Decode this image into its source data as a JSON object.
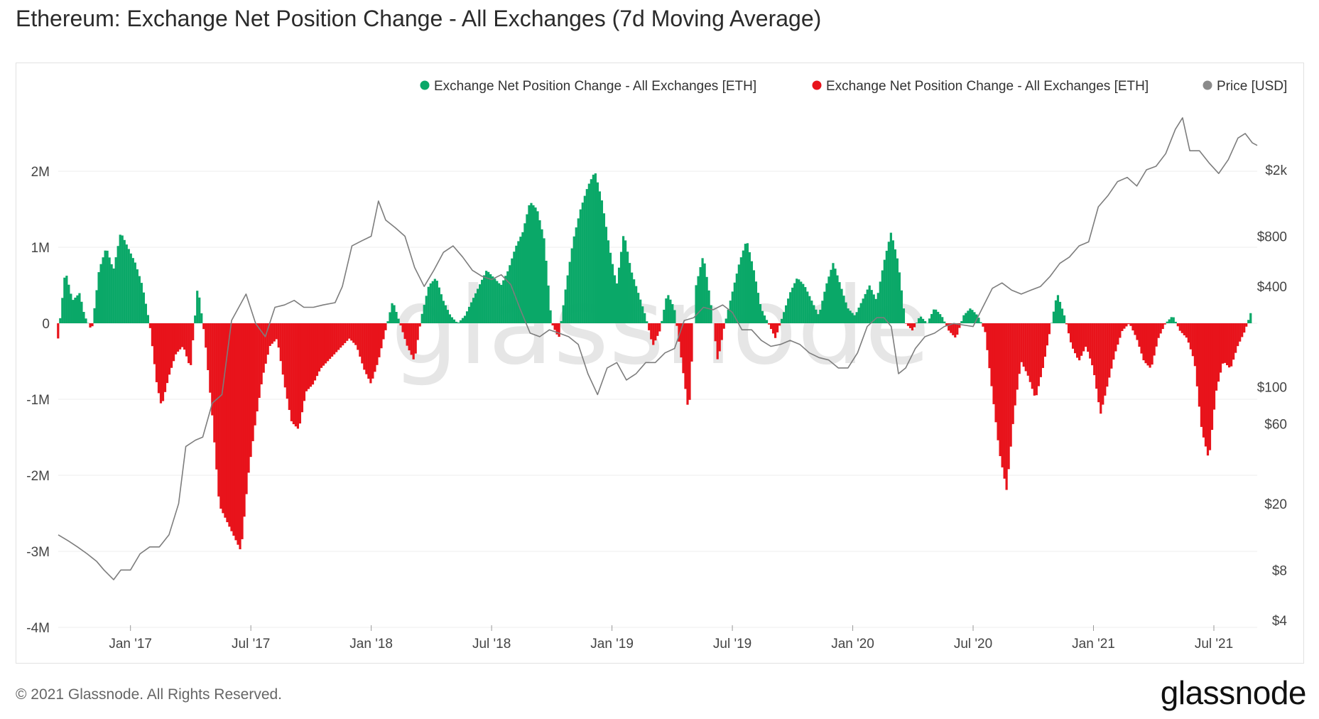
{
  "title": "Ethereum: Exchange Net Position Change - All Exchanges (7d Moving Average)",
  "footer": "© 2021 Glassnode. All Rights Reserved.",
  "logo": "glassnode",
  "watermark": "glassnode",
  "colors": {
    "positive": "#0aa868",
    "negative": "#e8131b",
    "price": "#8a8a8a",
    "grid": "#ececec"
  },
  "chart_data": {
    "type": "bar",
    "title": "Ethereum: Exchange Net Position Change - All Exchanges (7d Moving Average)",
    "legend": [
      {
        "label": "Exchange Net Position Change - All Exchanges [ETH]",
        "color": "#0aa868"
      },
      {
        "label": "Exchange Net Position Change - All Exchanges [ETH]",
        "color": "#e8131b"
      },
      {
        "label": "Price [USD]",
        "color": "#8a8a8a"
      }
    ],
    "legend_position": "top-right",
    "y_left": {
      "min": -4000000,
      "max": 2000000,
      "ticks": [
        2000000,
        1000000,
        0,
        -1000000,
        -2000000,
        -3000000,
        -4000000
      ],
      "tick_labels": [
        "2M",
        "1M",
        "0",
        "-1M",
        "-2M",
        "-3M",
        "-4M"
      ]
    },
    "y_right": {
      "scale": "log",
      "min": 4,
      "max": 4000,
      "ticks": [
        2000,
        800,
        400,
        100,
        60,
        20,
        8,
        4
      ],
      "tick_labels": [
        "$2k",
        "$800",
        "$400",
        "$100",
        "$60",
        "$20",
        "$8",
        "$4"
      ]
    },
    "x_range": [
      2016.7,
      2021.68
    ],
    "x_ticks": [
      2017.0,
      2017.5,
      2018.0,
      2018.5,
      2019.0,
      2019.5,
      2020.0,
      2020.5,
      2021.0,
      2021.5
    ],
    "x_tick_labels": [
      "Jan '17",
      "Jul '17",
      "Jan '18",
      "Jul '18",
      "Jan '19",
      "Jul '19",
      "Jan '20",
      "Jul '20",
      "Jan '21",
      "Jul '21"
    ],
    "net_position_change": [
      [
        2016.7,
        -200000
      ],
      [
        2016.73,
        700000
      ],
      [
        2016.76,
        300000
      ],
      [
        2016.79,
        400000
      ],
      [
        2016.81,
        100000
      ],
      [
        2016.84,
        -100000
      ],
      [
        2016.87,
        700000
      ],
      [
        2016.9,
        1000000
      ],
      [
        2016.93,
        700000
      ],
      [
        2016.96,
        1200000
      ],
      [
        2016.99,
        1000000
      ],
      [
        2017.02,
        800000
      ],
      [
        2017.05,
        500000
      ],
      [
        2017.08,
        0
      ],
      [
        2017.11,
        -800000
      ],
      [
        2017.13,
        -1100000
      ],
      [
        2017.16,
        -700000
      ],
      [
        2017.19,
        -400000
      ],
      [
        2017.22,
        -300000
      ],
      [
        2017.25,
        -600000
      ],
      [
        2017.28,
        500000
      ],
      [
        2017.31,
        -200000
      ],
      [
        2017.34,
        -1200000
      ],
      [
        2017.37,
        -2400000
      ],
      [
        2017.4,
        -2600000
      ],
      [
        2017.43,
        -2800000
      ],
      [
        2017.46,
        -3000000
      ],
      [
        2017.49,
        -2000000
      ],
      [
        2017.52,
        -1300000
      ],
      [
        2017.55,
        -700000
      ],
      [
        2017.58,
        -300000
      ],
      [
        2017.61,
        -200000
      ],
      [
        2017.64,
        -800000
      ],
      [
        2017.67,
        -1300000
      ],
      [
        2017.7,
        -1400000
      ],
      [
        2017.73,
        -900000
      ],
      [
        2017.76,
        -800000
      ],
      [
        2017.79,
        -600000
      ],
      [
        2017.82,
        -500000
      ],
      [
        2017.85,
        -400000
      ],
      [
        2017.88,
        -300000
      ],
      [
        2017.91,
        -200000
      ],
      [
        2017.94,
        -300000
      ],
      [
        2017.97,
        -600000
      ],
      [
        2018.0,
        -800000
      ],
      [
        2018.03,
        -500000
      ],
      [
        2018.06,
        -100000
      ],
      [
        2018.09,
        300000
      ],
      [
        2018.12,
        0
      ],
      [
        2018.15,
        -300000
      ],
      [
        2018.18,
        -500000
      ],
      [
        2018.21,
        100000
      ],
      [
        2018.24,
        500000
      ],
      [
        2018.27,
        600000
      ],
      [
        2018.3,
        300000
      ],
      [
        2018.33,
        100000
      ],
      [
        2018.36,
        0
      ],
      [
        2018.39,
        100000
      ],
      [
        2018.42,
        300000
      ],
      [
        2018.45,
        500000
      ],
      [
        2018.48,
        700000
      ],
      [
        2018.51,
        600000
      ],
      [
        2018.54,
        500000
      ],
      [
        2018.57,
        700000
      ],
      [
        2018.6,
        1000000
      ],
      [
        2018.63,
        1200000
      ],
      [
        2018.66,
        1600000
      ],
      [
        2018.69,
        1500000
      ],
      [
        2018.72,
        1100000
      ],
      [
        2018.75,
        0
      ],
      [
        2018.78,
        -200000
      ],
      [
        2018.81,
        500000
      ],
      [
        2018.84,
        1100000
      ],
      [
        2018.87,
        1500000
      ],
      [
        2018.9,
        1800000
      ],
      [
        2018.93,
        2000000
      ],
      [
        2018.96,
        1600000
      ],
      [
        2018.99,
        1000000
      ],
      [
        2019.02,
        500000
      ],
      [
        2019.05,
        1200000
      ],
      [
        2019.08,
        700000
      ],
      [
        2019.11,
        400000
      ],
      [
        2019.14,
        100000
      ],
      [
        2019.17,
        -300000
      ],
      [
        2019.2,
        -100000
      ],
      [
        2019.23,
        400000
      ],
      [
        2019.26,
        200000
      ],
      [
        2019.29,
        -500000
      ],
      [
        2019.32,
        -1200000
      ],
      [
        2019.35,
        500000
      ],
      [
        2019.38,
        900000
      ],
      [
        2019.41,
        300000
      ],
      [
        2019.44,
        -500000
      ],
      [
        2019.47,
        0
      ],
      [
        2019.5,
        400000
      ],
      [
        2019.53,
        800000
      ],
      [
        2019.56,
        1100000
      ],
      [
        2019.59,
        700000
      ],
      [
        2019.62,
        200000
      ],
      [
        2019.65,
        0
      ],
      [
        2019.68,
        -200000
      ],
      [
        2019.71,
        100000
      ],
      [
        2019.74,
        400000
      ],
      [
        2019.77,
        600000
      ],
      [
        2019.8,
        500000
      ],
      [
        2019.83,
        300000
      ],
      [
        2019.86,
        100000
      ],
      [
        2019.89,
        500000
      ],
      [
        2019.92,
        800000
      ],
      [
        2019.95,
        500000
      ],
      [
        2019.98,
        200000
      ],
      [
        2020.01,
        100000
      ],
      [
        2020.04,
        300000
      ],
      [
        2020.07,
        500000
      ],
      [
        2020.1,
        300000
      ],
      [
        2020.13,
        800000
      ],
      [
        2020.16,
        1200000
      ],
      [
        2020.19,
        800000
      ],
      [
        2020.22,
        0
      ],
      [
        2020.25,
        -100000
      ],
      [
        2020.28,
        100000
      ],
      [
        2020.31,
        0
      ],
      [
        2020.34,
        200000
      ],
      [
        2020.37,
        100000
      ],
      [
        2020.4,
        -100000
      ],
      [
        2020.43,
        -200000
      ],
      [
        2020.46,
        100000
      ],
      [
        2020.49,
        200000
      ],
      [
        2020.52,
        100000
      ],
      [
        2020.55,
        -100000
      ],
      [
        2020.58,
        -900000
      ],
      [
        2020.61,
        -1700000
      ],
      [
        2020.64,
        -2200000
      ],
      [
        2020.67,
        -1200000
      ],
      [
        2020.7,
        -500000
      ],
      [
        2020.73,
        -700000
      ],
      [
        2020.76,
        -1000000
      ],
      [
        2020.79,
        -600000
      ],
      [
        2020.82,
        -100000
      ],
      [
        2020.85,
        400000
      ],
      [
        2020.88,
        100000
      ],
      [
        2020.91,
        -300000
      ],
      [
        2020.94,
        -500000
      ],
      [
        2020.97,
        -300000
      ],
      [
        2021.0,
        -600000
      ],
      [
        2021.03,
        -1200000
      ],
      [
        2021.06,
        -800000
      ],
      [
        2021.09,
        -400000
      ],
      [
        2021.12,
        -100000
      ],
      [
        2021.15,
        0
      ],
      [
        2021.18,
        -200000
      ],
      [
        2021.21,
        -500000
      ],
      [
        2021.24,
        -600000
      ],
      [
        2021.27,
        -200000
      ],
      [
        2021.3,
        0
      ],
      [
        2021.33,
        100000
      ],
      [
        2021.36,
        -100000
      ],
      [
        2021.39,
        -200000
      ],
      [
        2021.42,
        -500000
      ],
      [
        2021.45,
        -1400000
      ],
      [
        2021.48,
        -1800000
      ],
      [
        2021.51,
        -900000
      ],
      [
        2021.54,
        -500000
      ],
      [
        2021.57,
        -600000
      ],
      [
        2021.6,
        -300000
      ],
      [
        2021.63,
        -100000
      ],
      [
        2021.66,
        200000
      ]
    ],
    "price_usd": [
      [
        2016.7,
        13
      ],
      [
        2016.74,
        12
      ],
      [
        2016.78,
        11
      ],
      [
        2016.82,
        10
      ],
      [
        2016.86,
        9
      ],
      [
        2016.89,
        8
      ],
      [
        2016.93,
        7
      ],
      [
        2016.96,
        8
      ],
      [
        2017.0,
        8
      ],
      [
        2017.04,
        10
      ],
      [
        2017.08,
        11
      ],
      [
        2017.12,
        11
      ],
      [
        2017.16,
        13
      ],
      [
        2017.2,
        20
      ],
      [
        2017.23,
        44
      ],
      [
        2017.27,
        48
      ],
      [
        2017.3,
        50
      ],
      [
        2017.34,
        80
      ],
      [
        2017.38,
        90
      ],
      [
        2017.42,
        250
      ],
      [
        2017.45,
        300
      ],
      [
        2017.48,
        360
      ],
      [
        2017.52,
        240
      ],
      [
        2017.56,
        200
      ],
      [
        2017.6,
        300
      ],
      [
        2017.64,
        310
      ],
      [
        2017.68,
        330
      ],
      [
        2017.72,
        300
      ],
      [
        2017.76,
        300
      ],
      [
        2017.8,
        310
      ],
      [
        2017.85,
        320
      ],
      [
        2017.88,
        400
      ],
      [
        2017.92,
        700
      ],
      [
        2017.96,
        750
      ],
      [
        2018.0,
        800
      ],
      [
        2018.03,
        1300
      ],
      [
        2018.06,
        1000
      ],
      [
        2018.1,
        900
      ],
      [
        2018.14,
        800
      ],
      [
        2018.18,
        520
      ],
      [
        2018.22,
        400
      ],
      [
        2018.26,
        500
      ],
      [
        2018.3,
        640
      ],
      [
        2018.34,
        700
      ],
      [
        2018.38,
        600
      ],
      [
        2018.42,
        500
      ],
      [
        2018.46,
        460
      ],
      [
        2018.5,
        440
      ],
      [
        2018.54,
        470
      ],
      [
        2018.58,
        410
      ],
      [
        2018.62,
        290
      ],
      [
        2018.66,
        210
      ],
      [
        2018.7,
        200
      ],
      [
        2018.74,
        220
      ],
      [
        2018.78,
        210
      ],
      [
        2018.82,
        200
      ],
      [
        2018.86,
        180
      ],
      [
        2018.9,
        120
      ],
      [
        2018.94,
        90
      ],
      [
        2018.98,
        130
      ],
      [
        2019.02,
        140
      ],
      [
        2019.06,
        110
      ],
      [
        2019.1,
        120
      ],
      [
        2019.14,
        140
      ],
      [
        2019.18,
        140
      ],
      [
        2019.22,
        160
      ],
      [
        2019.26,
        170
      ],
      [
        2019.3,
        250
      ],
      [
        2019.34,
        260
      ],
      [
        2019.38,
        300
      ],
      [
        2019.42,
        290
      ],
      [
        2019.46,
        310
      ],
      [
        2019.5,
        280
      ],
      [
        2019.54,
        220
      ],
      [
        2019.58,
        220
      ],
      [
        2019.62,
        190
      ],
      [
        2019.66,
        175
      ],
      [
        2019.7,
        180
      ],
      [
        2019.74,
        190
      ],
      [
        2019.78,
        180
      ],
      [
        2019.82,
        160
      ],
      [
        2019.86,
        150
      ],
      [
        2019.9,
        145
      ],
      [
        2019.94,
        130
      ],
      [
        2019.98,
        130
      ],
      [
        2020.02,
        160
      ],
      [
        2020.06,
        230
      ],
      [
        2020.1,
        260
      ],
      [
        2020.13,
        260
      ],
      [
        2020.16,
        230
      ],
      [
        2020.19,
        120
      ],
      [
        2020.22,
        130
      ],
      [
        2020.26,
        170
      ],
      [
        2020.3,
        200
      ],
      [
        2020.34,
        210
      ],
      [
        2020.38,
        230
      ],
      [
        2020.42,
        240
      ],
      [
        2020.46,
        235
      ],
      [
        2020.5,
        230
      ],
      [
        2020.54,
        300
      ],
      [
        2020.58,
        390
      ],
      [
        2020.62,
        420
      ],
      [
        2020.66,
        380
      ],
      [
        2020.7,
        360
      ],
      [
        2020.74,
        380
      ],
      [
        2020.78,
        400
      ],
      [
        2020.82,
        460
      ],
      [
        2020.86,
        550
      ],
      [
        2020.9,
        600
      ],
      [
        2020.94,
        700
      ],
      [
        2020.98,
        740
      ],
      [
        2021.02,
        1200
      ],
      [
        2021.06,
        1400
      ],
      [
        2021.1,
        1700
      ],
      [
        2021.14,
        1800
      ],
      [
        2021.18,
        1600
      ],
      [
        2021.22,
        2000
      ],
      [
        2021.26,
        2100
      ],
      [
        2021.3,
        2500
      ],
      [
        2021.34,
        3500
      ],
      [
        2021.37,
        4100
      ],
      [
        2021.4,
        2600
      ],
      [
        2021.44,
        2600
      ],
      [
        2021.48,
        2200
      ],
      [
        2021.52,
        1900
      ],
      [
        2021.56,
        2300
      ],
      [
        2021.6,
        3100
      ],
      [
        2021.63,
        3300
      ],
      [
        2021.66,
        2900
      ],
      [
        2021.68,
        2800
      ]
    ]
  }
}
